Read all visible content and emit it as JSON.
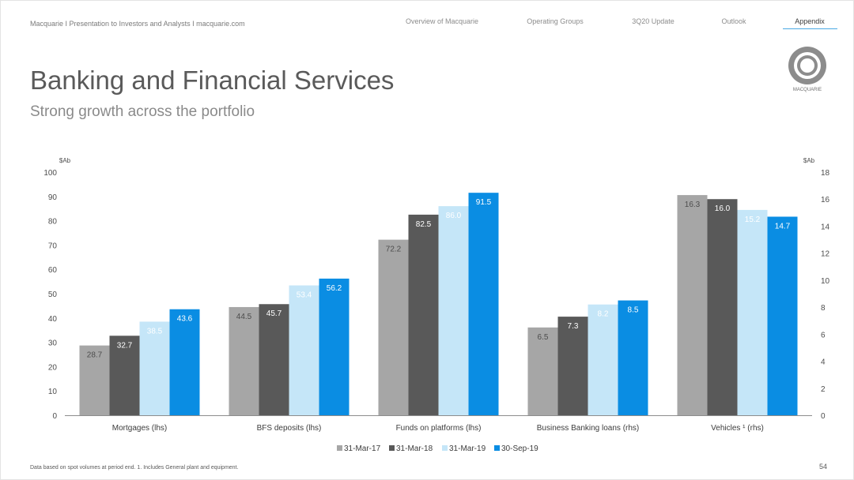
{
  "header": {
    "breadcrumb": "Macquarie  I  Presentation to Investors and Analysts I  macquarie.com",
    "nav": [
      {
        "label": "Overview of Macquarie",
        "active": false
      },
      {
        "label": "Operating Groups",
        "active": false
      },
      {
        "label": "3Q20 Update",
        "active": false
      },
      {
        "label": "Outlook",
        "active": false
      },
      {
        "label": "Appendix",
        "active": true
      }
    ],
    "logo_text": "MACQUARIE",
    "accent_color": "#4aa9e3"
  },
  "title": "Banking and Financial Services",
  "subtitle": "Strong growth across the portfolio",
  "footnote": "Data based on spot volumes at period end. 1. Includes General plant and equipment.",
  "page_number": "54",
  "chart_data": {
    "type": "bar",
    "left_axis": {
      "label": "$Ab",
      "ylim": [
        0,
        100
      ],
      "ticks": [
        "0",
        "10",
        "20",
        "30",
        "40",
        "50",
        "60",
        "70",
        "80",
        "90",
        "100"
      ]
    },
    "right_axis": {
      "label": "$Ab",
      "ylim": [
        0,
        18
      ],
      "ticks": [
        "0",
        "2",
        "4",
        "6",
        "8",
        "10",
        "12",
        "14",
        "16",
        "18"
      ]
    },
    "categories": [
      {
        "label": "Mortgages (lhs)",
        "axis": "left"
      },
      {
        "label": "BFS deposits (lhs)",
        "axis": "left"
      },
      {
        "label": "Funds on platforms (lhs)",
        "axis": "left"
      },
      {
        "label": "Business Banking loans (rhs)",
        "axis": "right"
      },
      {
        "label": "Vehicles ¹ (rhs)",
        "axis": "right"
      }
    ],
    "series": [
      {
        "name": "31-Mar-17",
        "color": "#a6a6a6",
        "values": [
          28.7,
          44.5,
          72.2,
          6.5,
          16.3
        ],
        "labels": [
          "28.7",
          "44.5",
          "72.2",
          "6.5",
          "16.3"
        ]
      },
      {
        "name": "31-Mar-18",
        "color": "#595959",
        "values": [
          32.7,
          45.7,
          82.5,
          7.3,
          16.0
        ],
        "labels": [
          "32.7",
          "45.7",
          "82.5",
          "7.3",
          "16.0"
        ]
      },
      {
        "name": "31-Mar-19",
        "color": "#c5e6f8",
        "values": [
          38.5,
          53.4,
          86.0,
          8.2,
          15.2
        ],
        "labels": [
          "38.5",
          "53.4",
          "86.0",
          "8.2",
          "15.2"
        ]
      },
      {
        "name": "30-Sep-19",
        "color": "#0a8de3",
        "values": [
          43.6,
          56.2,
          91.5,
          8.5,
          14.7
        ],
        "labels": [
          "43.6",
          "56.2",
          "91.5",
          "8.5",
          "14.7"
        ]
      }
    ],
    "legend_position": "bottom",
    "grid": false
  }
}
